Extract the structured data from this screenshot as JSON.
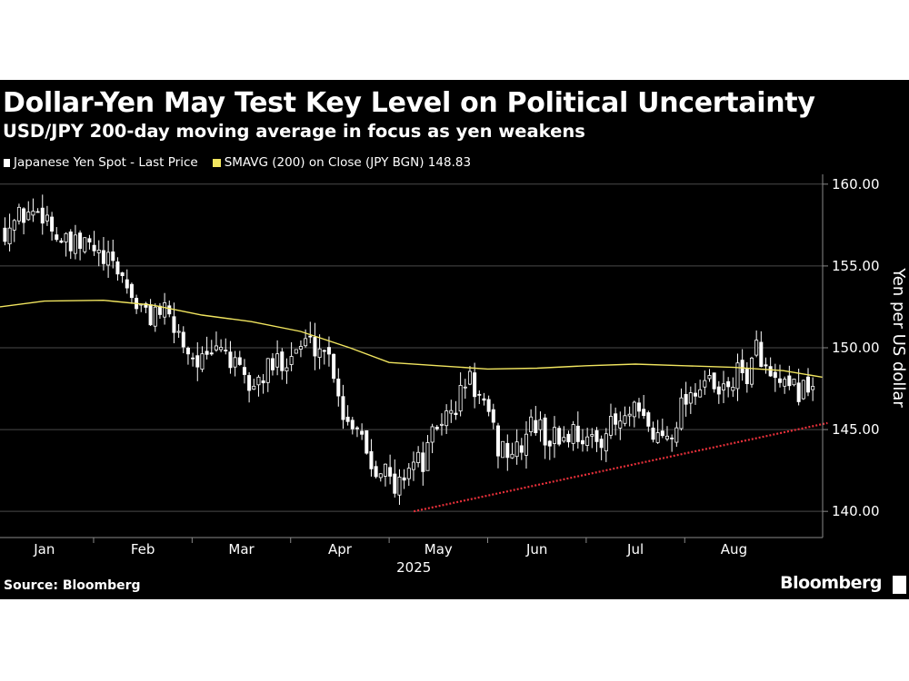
{
  "title": "Dollar-Yen May Test Key Level on Political Uncertainty",
  "subtitle": "USD/JPY 200-day moving average in focus as yen weakens",
  "legend": {
    "candles": "Japanese Yen Spot - Last Price",
    "sma": "SMAVG (200)  on Close (JPY BGN) 148.83"
  },
  "source": "Source: Bloomberg",
  "brand": "Bloomberg",
  "colors": {
    "background": "#000000",
    "candle": "#ffffff",
    "sma": "#f1e55f",
    "trend": "#e8303a",
    "grid": "#555555"
  },
  "chart_data": {
    "type": "candlestick",
    "ylabel": "Yen per US dollar",
    "ylim": [
      138.4,
      160.6
    ],
    "yticks": [
      "160.00",
      "155.00",
      "150.00",
      "145.00",
      "140.00"
    ],
    "ytick_values": [
      160,
      155,
      150,
      145,
      140
    ],
    "x_months": [
      "Jan",
      "Feb",
      "Mar",
      "Apr",
      "May",
      "Jun",
      "Jul",
      "Aug"
    ],
    "x_month_values": [
      1,
      2,
      3,
      4,
      5,
      6,
      7,
      8
    ],
    "x_month_starts": [
      "2025-01",
      "2025-02",
      "2025-03",
      "2025-04",
      "2025-05",
      "2025-06",
      "2025-07",
      "2025-08"
    ],
    "year_label": "2025",
    "xlim": [
      0.55,
      8.9
    ],
    "grid": true,
    "legend_position": "top-left",
    "close_path": [
      [
        0.6,
        157.3
      ],
      [
        0.8,
        158.2
      ],
      [
        1.0,
        158.4
      ],
      [
        1.1,
        157.0
      ],
      [
        1.25,
        156.0
      ],
      [
        1.45,
        156.3
      ],
      [
        1.6,
        155.2
      ],
      [
        1.75,
        154.8
      ],
      [
        1.9,
        153.0
      ],
      [
        2.05,
        151.8
      ],
      [
        2.15,
        152.5
      ],
      [
        2.35,
        151.0
      ],
      [
        2.5,
        149.5
      ],
      [
        2.65,
        149.0
      ],
      [
        2.8,
        150.3
      ],
      [
        2.95,
        148.5
      ],
      [
        3.1,
        147.5
      ],
      [
        3.25,
        148.5
      ],
      [
        3.45,
        149.5
      ],
      [
        3.65,
        150.3
      ],
      [
        3.85,
        150.0
      ],
      [
        3.95,
        148.5
      ],
      [
        4.05,
        145.5
      ],
      [
        4.2,
        145.5
      ],
      [
        4.3,
        143.0
      ],
      [
        4.45,
        142.8
      ],
      [
        4.55,
        141.0
      ],
      [
        4.7,
        143.0
      ],
      [
        4.85,
        143.0
      ],
      [
        5.0,
        145.5
      ],
      [
        5.15,
        146.0
      ],
      [
        5.3,
        148.3
      ],
      [
        5.45,
        146.5
      ],
      [
        5.6,
        144.0
      ],
      [
        5.8,
        143.5
      ],
      [
        5.95,
        145.5
      ],
      [
        6.1,
        144.5
      ],
      [
        6.25,
        144.5
      ],
      [
        6.4,
        145.0
      ],
      [
        6.55,
        144.0
      ],
      [
        6.7,
        145.0
      ],
      [
        6.9,
        145.5
      ],
      [
        7.0,
        146.0
      ],
      [
        7.2,
        144.5
      ],
      [
        7.35,
        144.8
      ],
      [
        7.5,
        147.0
      ],
      [
        7.7,
        148.0
      ],
      [
        7.85,
        147.0
      ],
      [
        8.0,
        148.2
      ],
      [
        8.15,
        148.5
      ],
      [
        8.25,
        150.2
      ],
      [
        8.35,
        148.0
      ],
      [
        8.55,
        147.2
      ],
      [
        8.8,
        147.8
      ]
    ],
    "series": [
      {
        "name": "SMAVG (200)  on Close (JPY BGN)",
        "last": 148.83,
        "points": [
          [
            0.55,
            152.5
          ],
          [
            1.0,
            152.85
          ],
          [
            1.6,
            152.9
          ],
          [
            2.1,
            152.6
          ],
          [
            2.6,
            152.0
          ],
          [
            3.1,
            151.6
          ],
          [
            3.6,
            151.0
          ],
          [
            4.1,
            150.0
          ],
          [
            4.5,
            149.1
          ],
          [
            5.0,
            148.9
          ],
          [
            5.5,
            148.7
          ],
          [
            6.0,
            148.75
          ],
          [
            6.5,
            148.9
          ],
          [
            7.0,
            149.0
          ],
          [
            7.5,
            148.9
          ],
          [
            8.0,
            148.8
          ],
          [
            8.5,
            148.6
          ],
          [
            8.9,
            148.2
          ]
        ]
      }
    ],
    "trendline": {
      "x": [
        4.75,
        8.95
      ],
      "y": [
        140.0,
        145.4
      ]
    }
  }
}
